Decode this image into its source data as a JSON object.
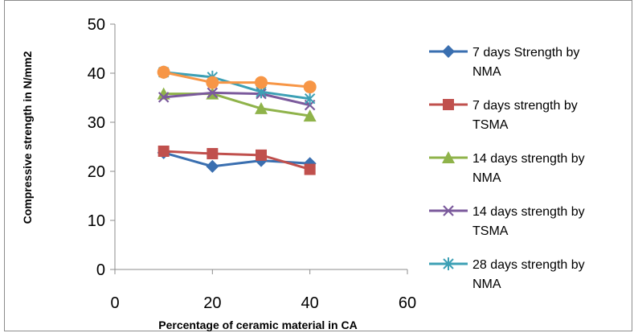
{
  "chart_data": {
    "type": "line",
    "title": "",
    "xlabel": "Percentage of ceramic material in CA",
    "ylabel": "Compressive strength in N/mm2",
    "xlim": [
      0,
      60
    ],
    "ylim": [
      0,
      50
    ],
    "x_ticks": [
      0,
      20,
      40,
      60
    ],
    "y_ticks": [
      0,
      10,
      20,
      30,
      40,
      50
    ],
    "grid": false,
    "legend_position": "right",
    "x": [
      10,
      20,
      30,
      40
    ],
    "series": [
      {
        "name": "7 days Strength by NMA",
        "legend_lines": [
          "7 days Strength by",
          "NMA"
        ],
        "color": "#3A6FB0",
        "marker": "diamond",
        "values": [
          23.8,
          21.0,
          22.2,
          21.6
        ]
      },
      {
        "name": "7 days strength by TSMA",
        "legend_lines": [
          "7 days strength by",
          "TSMA"
        ],
        "color": "#C0504D",
        "marker": "square",
        "values": [
          24.1,
          23.6,
          23.3,
          20.4
        ]
      },
      {
        "name": "14 days strength by NMA",
        "legend_lines": [
          "14 days strength by",
          "NMA"
        ],
        "color": "#8FB34A",
        "marker": "triangle",
        "values": [
          35.8,
          35.8,
          32.8,
          31.3
        ]
      },
      {
        "name": "14 days strength by TSMA",
        "legend_lines": [
          "14 days strength by",
          "TSMA"
        ],
        "color": "#7B5A9C",
        "marker": "x",
        "values": [
          35.1,
          36.0,
          35.8,
          33.5
        ]
      },
      {
        "name": "28 days strength by NMA",
        "legend_lines": [
          "28 days strength by",
          "NMA"
        ],
        "color": "#3DA0B5",
        "marker": "star",
        "values": [
          40.2,
          39.2,
          36.2,
          34.8
        ]
      },
      {
        "name": "",
        "legend_lines": [],
        "color": "#F79646",
        "marker": "circle",
        "values": [
          40.2,
          38.1,
          38.1,
          37.2
        ]
      }
    ]
  }
}
